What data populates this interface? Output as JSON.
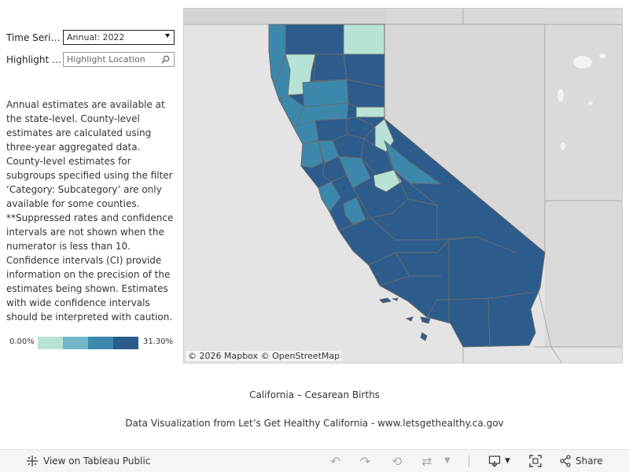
{
  "filters": {
    "time_series_label": "Time Series Year",
    "time_series_value": "Annual: 2022",
    "highlight_label": "Highlight Location",
    "highlight_placeholder": "Highlight Location"
  },
  "description": [
    "Annual estimates are available at the state-level. County-level estimates are calculated using three-year aggregated data.",
    "County-level estimates for subgroups specified using the filter ‘Category: Subcategory’ are only available for some counties.",
    "**Suppressed rates and confidence intervals are not shown when the numerator is less than 10.",
    "Confidence intervals (CI) provide information on the precision of the estimates being shown. Estimates with wide confidence intervals should be interpreted with caution."
  ],
  "legend": {
    "min": "0.00%",
    "max": "31.30%",
    "colors": [
      "#b7e3d6",
      "#72b7c8",
      "#3c88ad",
      "#2b5c8c"
    ]
  },
  "map": {
    "attribution": "© 2026 Mapbox  © OpenStreetMap",
    "land_color": "#d6d6d6",
    "border_color": "#6b6b6b"
  },
  "captions": {
    "title": "California – Cesarean Births",
    "source": "Data Visualization from Let’s Get Healthy California - www.letsgethealthy.ca.gov"
  },
  "toolbar": {
    "view_label": "View on Tableau Public",
    "share_label": "Share"
  }
}
